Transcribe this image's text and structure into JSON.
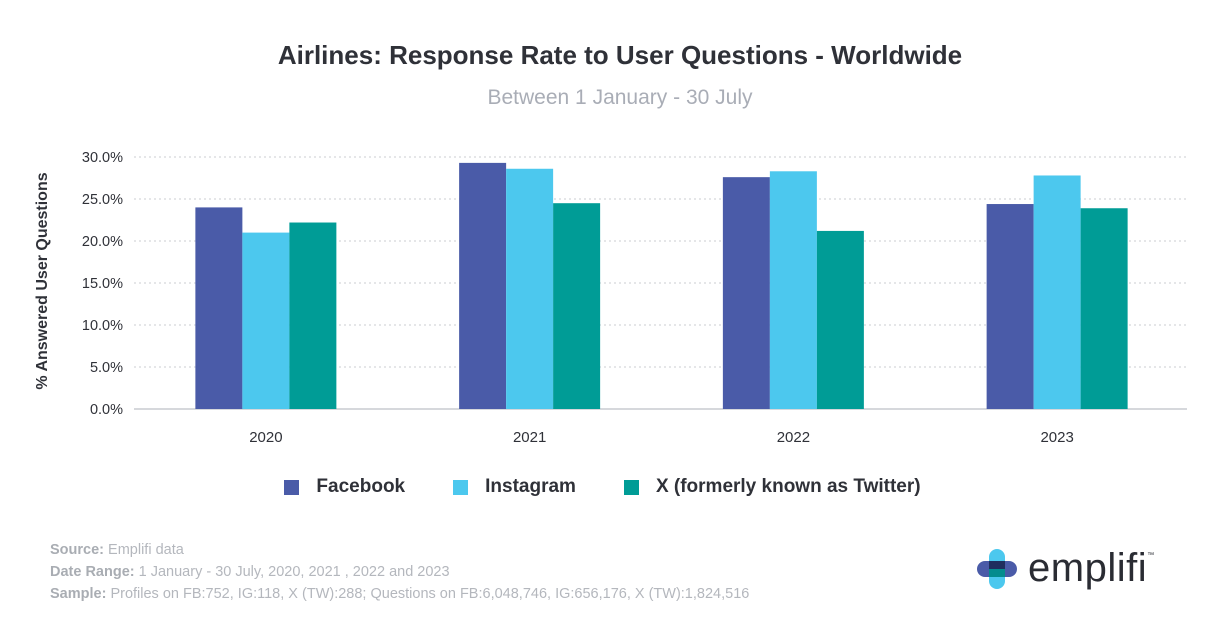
{
  "chart_data": {
    "type": "bar",
    "title": "Airlines: Response Rate to User Questions - Worldwide",
    "subtitle": "Between 1 January - 30 July",
    "ylabel": "% Answered User Questions",
    "xlabel": "",
    "categories": [
      "2020",
      "2021",
      "2022",
      "2023"
    ],
    "ylim": [
      0,
      30
    ],
    "yticks": [
      0,
      5,
      10,
      15,
      20,
      25,
      30
    ],
    "ytick_labels": [
      "0.0%",
      "5.0%",
      "10.0%",
      "15.0%",
      "20.0%",
      "25.0%",
      "30.0%"
    ],
    "grid": true,
    "legend_position": "bottom",
    "series": [
      {
        "name": "Facebook",
        "color": "#4a5ba8",
        "values": [
          24.0,
          29.3,
          27.6,
          24.4
        ]
      },
      {
        "name": "Instagram",
        "color": "#4cc8ee",
        "values": [
          21.0,
          28.6,
          28.3,
          27.8
        ]
      },
      {
        "name": "X (formerly known as Twitter)",
        "color": "#009c96",
        "values": [
          22.2,
          24.5,
          21.2,
          23.9
        ]
      }
    ]
  },
  "footer": {
    "source_label": "Source:",
    "source_value": "Emplifi data",
    "date_label": "Date Range:",
    "date_value": "1 January - 30 July, 2020, 2021 , 2022 and 2023",
    "sample_label": "Sample:",
    "sample_value": "Profiles on FB:752, IG:118, X (TW):288; Questions on FB:6,048,746, IG:656,176, X (TW):1,824,516"
  },
  "logo": {
    "text": "emplifi",
    "tm": "™"
  }
}
